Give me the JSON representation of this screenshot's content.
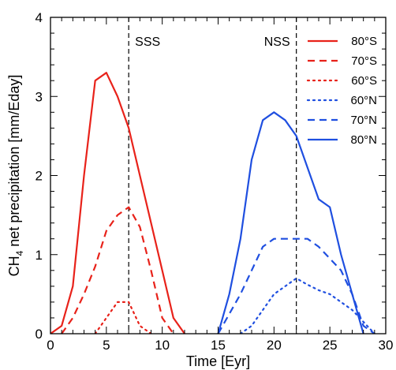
{
  "chart_data": {
    "type": "line",
    "xlabel": "Time [Eyr]",
    "ylabel_main": "CH",
    "ylabel_sub": "4",
    "ylabel_rest": " net precipitation [mm/Eday]",
    "xlim": [
      0,
      30
    ],
    "ylim": [
      0,
      4
    ],
    "xticks": [
      0,
      5,
      10,
      15,
      20,
      25,
      30
    ],
    "yticks": [
      0,
      1,
      2,
      3,
      4
    ],
    "grid": false,
    "legend_position": "top-right",
    "annotations": [
      {
        "text": "SSS",
        "x": 7
      },
      {
        "text": "NSS",
        "x": 22
      }
    ],
    "vlines": [
      7,
      22
    ],
    "series": [
      {
        "name": "80°S",
        "color": "#e8221a",
        "dash": "solid",
        "x": [
          0,
          1,
          2,
          3,
          4,
          5,
          6,
          7,
          8,
          9,
          10,
          11,
          12
        ],
        "y": [
          0,
          0.1,
          0.6,
          2.0,
          3.2,
          3.3,
          3.0,
          2.6,
          2.0,
          1.4,
          0.8,
          0.2,
          0
        ]
      },
      {
        "name": "70°S",
        "color": "#e8221a",
        "dash": "dashed",
        "x": [
          1,
          2,
          3,
          4,
          5,
          6,
          7,
          8,
          9,
          10,
          11
        ],
        "y": [
          0,
          0.2,
          0.5,
          0.85,
          1.3,
          1.5,
          1.6,
          1.35,
          0.8,
          0.2,
          0
        ]
      },
      {
        "name": "60°S",
        "color": "#e8221a",
        "dash": "dotted",
        "x": [
          4,
          5,
          6,
          7,
          8,
          9
        ],
        "y": [
          0,
          0.2,
          0.4,
          0.4,
          0.1,
          0
        ]
      },
      {
        "name": "60°N",
        "color": "#1f4fe0",
        "dash": "dotted",
        "x": [
          17,
          18,
          19,
          20,
          21,
          22,
          23,
          24,
          25,
          26,
          27,
          28,
          29
        ],
        "y": [
          0,
          0.1,
          0.3,
          0.5,
          0.6,
          0.7,
          0.62,
          0.55,
          0.5,
          0.4,
          0.3,
          0.15,
          0
        ]
      },
      {
        "name": "70°N",
        "color": "#1f4fe0",
        "dash": "dashed",
        "x": [
          15,
          16,
          17,
          18,
          19,
          20,
          21,
          22,
          23,
          24,
          25,
          26,
          27,
          28,
          29
        ],
        "y": [
          0,
          0.25,
          0.5,
          0.8,
          1.1,
          1.2,
          1.2,
          1.2,
          1.2,
          1.1,
          0.95,
          0.8,
          0.5,
          0.1,
          0
        ]
      },
      {
        "name": "80°N",
        "color": "#1f4fe0",
        "dash": "solid",
        "x": [
          15,
          16,
          17,
          18,
          19,
          20,
          21,
          22,
          23,
          24,
          25,
          26,
          27,
          28
        ],
        "y": [
          0,
          0.5,
          1.2,
          2.2,
          2.7,
          2.8,
          2.7,
          2.5,
          2.1,
          1.7,
          1.6,
          1.0,
          0.5,
          0
        ]
      }
    ]
  }
}
